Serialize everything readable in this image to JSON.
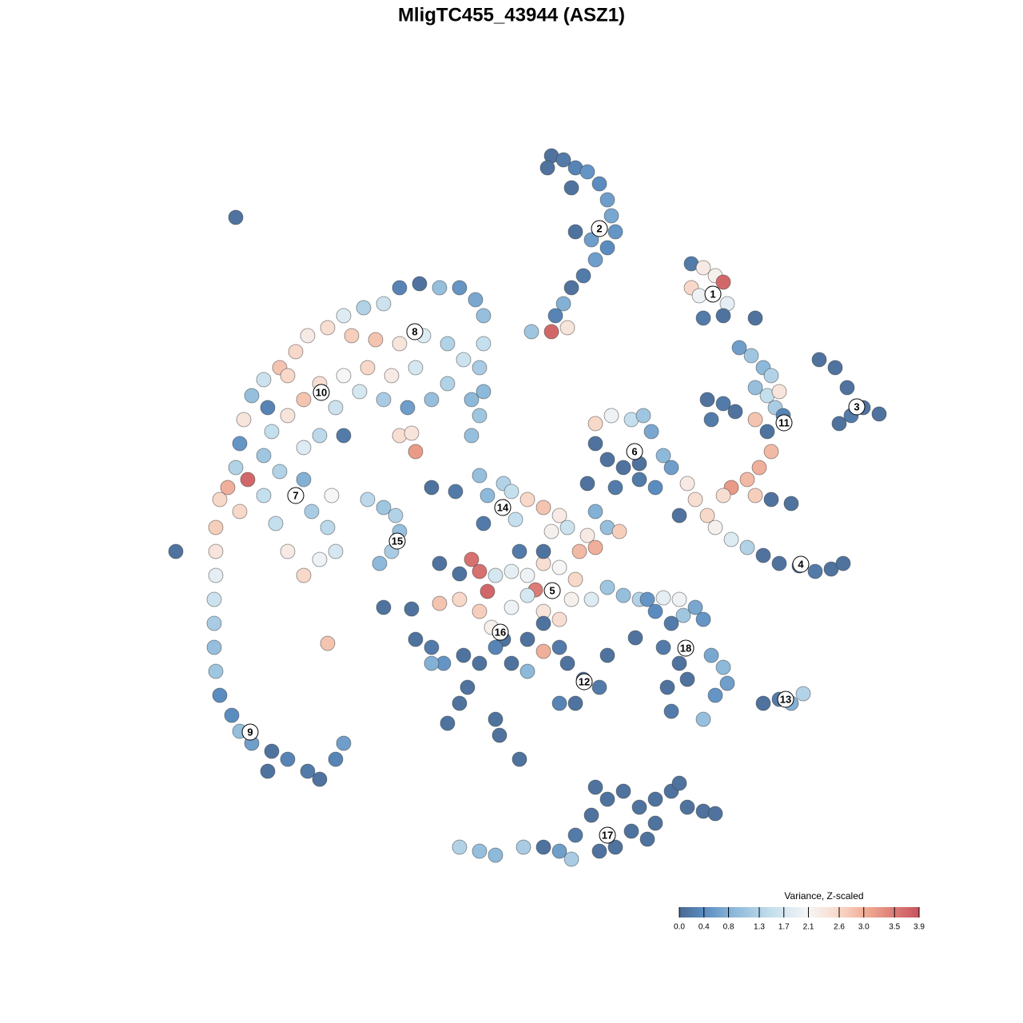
{
  "chart_data": {
    "type": "scatter",
    "title": "MligTC455_43944 (ASZ1)",
    "x": [
      500,
      525,
      550,
      575,
      595,
      605,
      605,
      600,
      605,
      600,
      590,
      480,
      455,
      430,
      410,
      385,
      370,
      350,
      330,
      315,
      305,
      300,
      295,
      285,
      275,
      270,
      270,
      270,
      268,
      268,
      268,
      270,
      275,
      290,
      300,
      315,
      340,
      360,
      385,
      400,
      420,
      430,
      335,
      295,
      220,
      410,
      440,
      470,
      500,
      530,
      560,
      580,
      520,
      490,
      460,
      430,
      400,
      380,
      360,
      340,
      330,
      350,
      380,
      400,
      420,
      450,
      480,
      510,
      540,
      560,
      590,
      310,
      330,
      380,
      390,
      410,
      420,
      400,
      380,
      360,
      345,
      360,
      335,
      300,
      430,
      415,
      690,
      705,
      720,
      735,
      750,
      760,
      765,
      770,
      760,
      745,
      730,
      715,
      705,
      695,
      710,
      690,
      665,
      715,
      720,
      740,
      685,
      865,
      880,
      895,
      905,
      865,
      875,
      910,
      880,
      905,
      945,
      892,
      1025,
      1045,
      1060,
      1080,
      1100,
      1050,
      1065,
      925,
      940,
      955,
      965,
      945,
      960,
      975,
      970,
      945,
      960,
      885,
      905,
      920,
      890,
      980,
      965,
      950,
      935,
      915,
      905,
      945,
      860,
      870,
      885,
      895,
      915,
      935,
      955,
      975,
      1000,
      1020,
      1040,
      1055,
      965,
      990,
      850,
      745,
      765,
      790,
      805,
      815,
      830,
      840,
      745,
      760,
      780,
      800,
      735,
      770,
      820,
      800,
      540,
      570,
      600,
      610,
      630,
      640,
      660,
      680,
      700,
      690,
      710,
      605,
      645,
      745,
      760,
      775,
      735,
      745,
      725,
      700,
      680,
      660,
      640,
      620,
      590,
      600,
      610,
      670,
      550,
      575,
      600,
      615,
      640,
      660,
      680,
      700,
      715,
      740,
      760,
      780,
      800,
      830,
      850,
      680,
      650,
      720,
      520,
      540,
      555,
      580,
      600,
      630,
      620,
      640,
      660,
      680,
      700,
      710,
      730,
      750,
      760,
      720,
      700,
      585,
      575,
      560,
      620,
      625,
      650,
      480,
      515,
      550,
      575,
      660,
      680,
      540,
      810,
      820,
      840,
      855,
      870,
      880,
      830,
      850,
      860,
      835,
      840,
      880,
      890,
      905,
      910,
      895,
      795,
      955,
      975,
      990,
      1005,
      575,
      600,
      620,
      655,
      680,
      700,
      715,
      720,
      740,
      760,
      780,
      800,
      820,
      840,
      860,
      880,
      895,
      820,
      790,
      770,
      810,
      745,
      750,
      850,
      460,
      480,
      495,
      500,
      490,
      475,
      520,
      500,
      515
    ],
    "y": [
      920,
      925,
      920,
      920,
      905,
      885,
      850,
      820,
      790,
      760,
      735,
      900,
      895,
      885,
      870,
      860,
      840,
      820,
      805,
      785,
      755,
      725,
      695,
      670,
      655,
      620,
      590,
      560,
      530,
      500,
      470,
      440,
      410,
      385,
      365,
      350,
      340,
      330,
      315,
      305,
      330,
      350,
      315,
      1008,
      590,
      475,
      860,
      855,
      850,
      860,
      850,
      830,
      820,
      810,
      820,
      810,
      800,
      780,
      760,
      740,
      710,
      690,
      720,
      735,
      770,
      790,
      780,
      770,
      780,
      800,
      780,
      680,
      660,
      680,
      640,
      620,
      590,
      580,
      560,
      590,
      625,
      810,
      770,
      640,
      735,
      660,
      1085,
      1080,
      1070,
      1065,
      1050,
      1030,
      1010,
      990,
      970,
      955,
      935,
      920,
      900,
      885,
      870,
      865,
      865,
      1045,
      990,
      980,
      1070,
      950,
      945,
      935,
      927,
      920,
      910,
      900,
      882,
      885,
      882,
      912,
      830,
      820,
      795,
      770,
      762,
      750,
      760,
      845,
      835,
      820,
      810,
      795,
      785,
      790,
      770,
      755,
      740,
      780,
      775,
      765,
      755,
      760,
      715,
      695,
      680,
      670,
      660,
      660,
      675,
      655,
      635,
      620,
      605,
      595,
      585,
      575,
      572,
      565,
      568,
      575,
      655,
      650,
      635,
      750,
      760,
      755,
      760,
      740,
      710,
      695,
      725,
      705,
      695,
      680,
      675,
      670,
      670,
      700,
      670,
      665,
      685,
      660,
      675,
      665,
      655,
      645,
      635,
      615,
      620,
      625,
      630,
      640,
      620,
      615,
      610,
      595,
      590,
      570,
      575,
      560,
      565,
      560,
      580,
      565,
      540,
      542,
      525,
      530,
      515,
      495,
      520,
      535,
      515,
      505,
      530,
      530,
      545,
      535,
      530,
      532,
      530,
      590,
      590,
      555,
      480,
      470,
      450,
      460,
      450,
      480,
      470,
      450,
      480,
      500,
      470,
      450,
      430,
      420,
      460,
      400,
      400,
      420,
      400,
      375,
      380,
      360,
      330,
      520,
      518,
      575,
      562,
      440,
      465,
      450,
      530,
      515,
      500,
      510,
      520,
      505,
      470,
      450,
      430,
      420,
      390,
      380,
      460,
      445,
      425,
      410,
      482,
      400,
      405,
      400,
      412,
      220,
      215,
      210,
      220,
      220,
      215,
      205,
      235,
      260,
      280,
      290,
      270,
      280,
      290,
      270,
      265,
      262,
      250,
      240,
      220,
      230,
      295,
      215,
      300,
      655,
      645,
      635,
      615,
      590,
      575,
      715,
      735,
      738
    ],
    "values": [
      0.3,
      0.1,
      1.0,
      0.5,
      0.7,
      1.0,
      1.5,
      1.2,
      0.9,
      1.1,
      1.0,
      1.6,
      1.3,
      1.8,
      2.5,
      2.3,
      2.6,
      2.8,
      1.6,
      1.0,
      2.4,
      0.5,
      1.3,
      3.0,
      2.6,
      2.7,
      2.4,
      1.9,
      1.6,
      1.2,
      1.0,
      1.1,
      0.4,
      0.4,
      1.0,
      0.6,
      0.1,
      0.3,
      0.2,
      0.1,
      0.3,
      0.6,
      0.1,
      0.1,
      0.1,
      2.8,
      2.7,
      2.8,
      2.4,
      1.8,
      1.3,
      1.6,
      1.7,
      2.3,
      2.6,
      2.1,
      2.5,
      2.8,
      2.4,
      1.5,
      1.1,
      1.3,
      1.8,
      1.4,
      1.6,
      1.7,
      1.2,
      0.6,
      1.0,
      1.3,
      0.9,
      3.7,
      1.5,
      0.8,
      1.2,
      1.4,
      1.7,
      2.0,
      2.6,
      2.3,
      1.5,
      2.6,
      0.3,
      2.6,
      0.2,
      2.1,
      0.1,
      0.2,
      0.3,
      0.5,
      0.4,
      0.6,
      0.7,
      0.5,
      0.4,
      0.6,
      0.2,
      0.1,
      0.8,
      0.3,
      2.4,
      3.7,
      1.1,
      0.1,
      0.1,
      0.6,
      0.1,
      0.2,
      2.3,
      2.2,
      3.7,
      2.6,
      2.0,
      1.9,
      0.2,
      0.1,
      0.1,
      2.4,
      0.1,
      0.1,
      0.1,
      0.1,
      0.1,
      0.1,
      0.2,
      0.6,
      1.1,
      0.9,
      1.3,
      1.0,
      1.5,
      2.4,
      1.2,
      2.8,
      0.1,
      0.1,
      0.2,
      0.1,
      0.2,
      0.3,
      2.9,
      3.0,
      2.9,
      3.2,
      2.5,
      2.7,
      2.3,
      2.5,
      2.6,
      2.2,
      1.8,
      1.3,
      0.1,
      0.1,
      0.2,
      0.2,
      0.1,
      0.1,
      0.1,
      0.1,
      0.1,
      2.6,
      2.0,
      1.5,
      1.1,
      0.7,
      0.9,
      0.6,
      0.1,
      0.1,
      0.1,
      0.2,
      0.1,
      0.2,
      0.4,
      0.1,
      0.1,
      0.2,
      1.0,
      0.9,
      1.3,
      1.5,
      2.6,
      2.8,
      2.3,
      2.2,
      1.6,
      0.2,
      1.5,
      0.8,
      1.0,
      2.7,
      2.3,
      3.0,
      2.9,
      2.1,
      2.5,
      2.0,
      1.9,
      1.7,
      3.6,
      3.6,
      3.7,
      3.5,
      2.8,
      2.6,
      2.7,
      2.2,
      2.0,
      1.7,
      2.4,
      2.5,
      2.2,
      1.8,
      1.1,
      1.0,
      1.3,
      1.9,
      2.0,
      0.1,
      0.2,
      2.6,
      0.1,
      0.2,
      0.5,
      0.1,
      0.1,
      0.1,
      0.3,
      0.1,
      0.1,
      0.1,
      0.2,
      0.1,
      0.1,
      0.2,
      0.1,
      0.1,
      0.3,
      0.1,
      0.1,
      0.1,
      0.1,
      0.1,
      0.1,
      0.1,
      0.1,
      0.1,
      0.1,
      0.9,
      3.0,
      0.8,
      0.5,
      0.4,
      0.2,
      1.1,
      0.7,
      0.5,
      0.2,
      0.1,
      0.1,
      0.1,
      0.2,
      1.0,
      0.7,
      0.9,
      0.6,
      0.5,
      0.1,
      0.1,
      0.2,
      0.8,
      1.3,
      1.3,
      1.0,
      0.9,
      1.2,
      0.1,
      0.6,
      1.2,
      0.2,
      0.1,
      0.1,
      0.1,
      0.1,
      0.1,
      0.1,
      0.1,
      0.1,
      0.1,
      0.1,
      0.1,
      0.1,
      0.1,
      0.1,
      0.1,
      0.1,
      1.4,
      1.1,
      1.3,
      1.0,
      1.2,
      0.9,
      3.2,
      2.5,
      2.4
    ],
    "clusters": {
      "labels": [
        "1",
        "2",
        "3",
        "4",
        "5",
        "6",
        "7",
        "8",
        "9",
        "10",
        "11",
        "12",
        "13",
        "14",
        "15",
        "16",
        "17",
        "18"
      ],
      "x": [
        892,
        750,
        1072,
        1002,
        691,
        794,
        370,
        519,
        313,
        402,
        981,
        731,
        983,
        629,
        497,
        626,
        760,
        858
      ],
      "y": [
        912,
        994,
        771,
        574,
        541,
        715,
        660,
        865,
        364,
        789,
        751,
        427,
        405,
        645,
        603,
        489,
        235,
        469
      ]
    },
    "colorbar": {
      "title": "Variance, Z-scaled",
      "clim": [
        0,
        3.9
      ],
      "ticks": [
        {
          "value": 0,
          "label": "0.0"
        },
        0.4,
        0.8,
        1.3,
        1.7,
        2.1,
        2.6,
        {
          "value": 3.0,
          "label": "3.0"
        },
        3.5,
        3.9
      ],
      "colorscale": [
        [
          0,
          "#4b6a92"
        ],
        [
          0.4,
          "#5b8cc0"
        ],
        [
          0.9,
          "#8db9da"
        ],
        [
          1.5,
          "#c4dfed"
        ],
        [
          2.1,
          "#f6f6f6"
        ],
        [
          2.6,
          "#f8d8c8"
        ],
        [
          3.1,
          "#eea58e"
        ],
        [
          3.9,
          "#c8525e"
        ]
      ]
    }
  }
}
